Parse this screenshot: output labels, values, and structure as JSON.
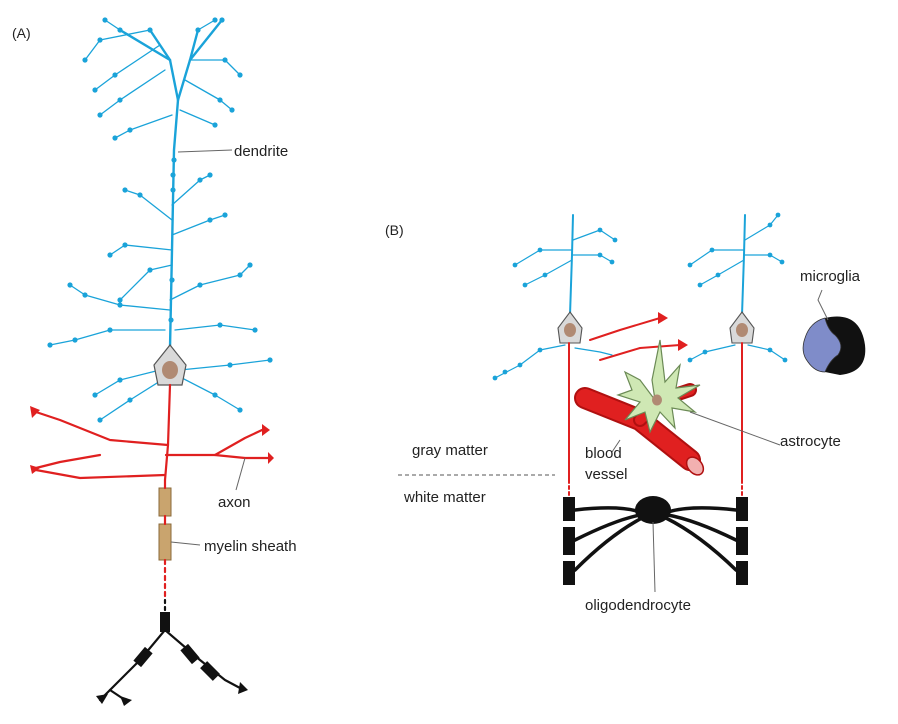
{
  "panels": {
    "a": "(A)",
    "b": "(B)"
  },
  "labels": {
    "dendrite": "dendrite",
    "axon": "axon",
    "myelin_sheath": "myelin sheath",
    "microglia": "microglia",
    "gray_matter": "gray matter",
    "white_matter": "white matter",
    "blood": "blood",
    "vessel": "vessel",
    "astrocyte": "astrocyte",
    "oligodendrocyte": "oligodendrocyte"
  },
  "colors": {
    "dendrite": "#1aa3d9",
    "axon": "#e02020",
    "myelin": "#c9a46e",
    "soma": "#d9d9d9",
    "nucleus": "#b08a73",
    "astrocyte": "#cfe8b4",
    "microglia": "#7f8cc9",
    "oligodendrocyte": "#111111"
  }
}
